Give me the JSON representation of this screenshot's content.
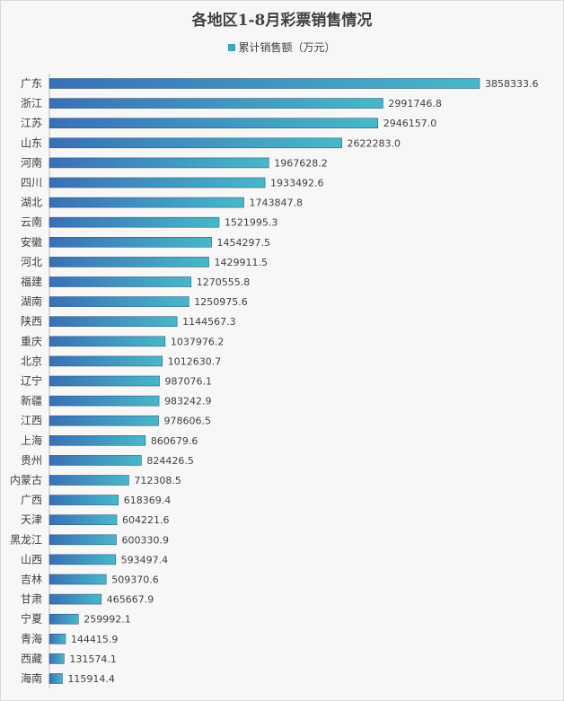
{
  "chart_data": {
    "type": "bar",
    "orientation": "horizontal",
    "title": "各地区1-8月彩票销售情况",
    "legend_position": "top",
    "series": [
      {
        "name": "累计销售额（万元）",
        "color": "#3fa3c2",
        "values": [
          3858333.6,
          2991746.8,
          2946157.0,
          2622283.0,
          1967628.2,
          1933492.6,
          1743847.8,
          1521995.3,
          1454297.5,
          1429911.5,
          1270555.8,
          1250975.6,
          1144567.3,
          1037976.2,
          1012630.7,
          987076.1,
          983242.9,
          978606.5,
          860679.6,
          824426.5,
          712308.5,
          618369.4,
          604221.6,
          600330.9,
          593497.4,
          509370.6,
          465667.9,
          259992.1,
          144415.9,
          131574.1,
          115914.4
        ]
      }
    ],
    "value_labels": [
      "3858333.6",
      "2991746.8",
      "2946157.0",
      "2622283.0",
      "1967628.2",
      "1933492.6",
      "1743847.8",
      "1521995.3",
      "1454297.5",
      "1429911.5",
      "1270555.8",
      "1250975.6",
      "1144567.3",
      "1037976.2",
      "1012630.7",
      "987076.1",
      "983242.9",
      "978606.5",
      "860679.6",
      "824426.5",
      "712308.5",
      "618369.4",
      "604221.6",
      "600330.9",
      "593497.4",
      "509370.6",
      "465667.9",
      "259992.1",
      "144415.9",
      "131574.1",
      "115914.4"
    ],
    "categories": [
      "广东",
      "浙江",
      "江苏",
      "山东",
      "河南",
      "四川",
      "湖北",
      "云南",
      "安徽",
      "河北",
      "福建",
      "湖南",
      "陕西",
      "重庆",
      "北京",
      "辽宁",
      "新疆",
      "江西",
      "上海",
      "贵州",
      "内蒙古",
      "广西",
      "天津",
      "黑龙江",
      "山西",
      "吉林",
      "甘肃",
      "宁夏",
      "青海",
      "西藏",
      "海南"
    ],
    "xlim": [
      0,
      4300000
    ],
    "grid": false
  }
}
